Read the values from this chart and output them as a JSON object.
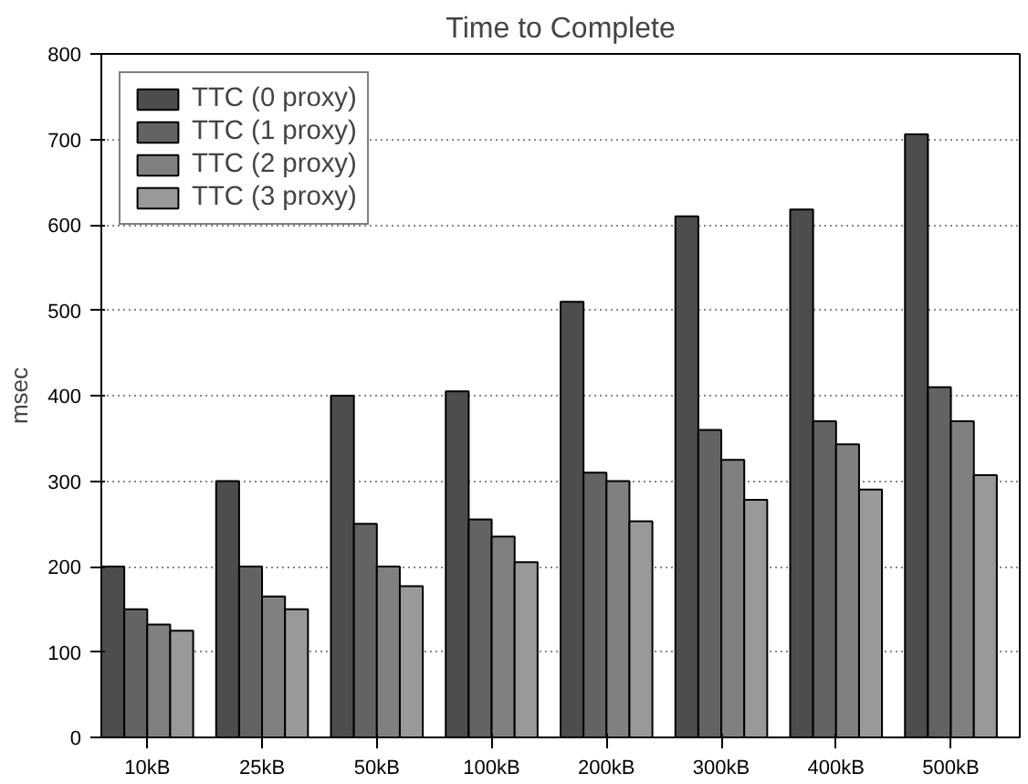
{
  "chart_data": {
    "type": "bar",
    "title": "Time to Complete",
    "ylabel": "msec",
    "categories": [
      "10kB",
      "25kB",
      "50kB",
      "100kB",
      "200kB",
      "300kB",
      "400kB",
      "500kB"
    ],
    "series": [
      {
        "name": "TTC (0 proxy)",
        "color": "#4d4d4d",
        "values": [
          200,
          300,
          400,
          405,
          510,
          610,
          618,
          706
        ]
      },
      {
        "name": "TTC (1 proxy)",
        "color": "#636363",
        "values": [
          150,
          200,
          250,
          255,
          310,
          360,
          370,
          410
        ]
      },
      {
        "name": "TTC (2 proxy)",
        "color": "#808080",
        "values": [
          132,
          165,
          200,
          235,
          300,
          325,
          343,
          370
        ]
      },
      {
        "name": "TTC (3 proxy)",
        "color": "#999999",
        "values": [
          125,
          150,
          177,
          205,
          253,
          278,
          290,
          307
        ]
      }
    ],
    "ylim": [
      0,
      800
    ],
    "yticks": [
      0,
      100,
      200,
      300,
      400,
      500,
      600,
      700,
      800
    ],
    "grid": "y",
    "legend": "top left"
  }
}
